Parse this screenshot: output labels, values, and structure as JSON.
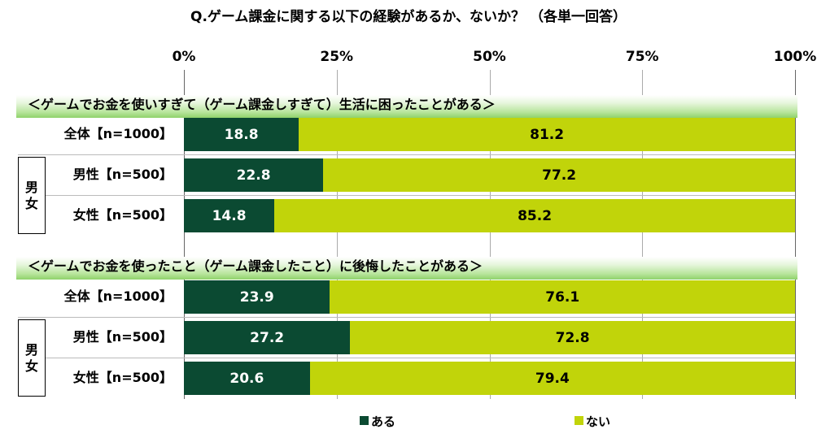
{
  "chart_data": {
    "type": "bar",
    "stacked": true,
    "orientation": "horizontal",
    "title": "Q.ゲーム課金に関する以下の経験があるか、ないか？ （各単一回答）",
    "x_ticks": [
      "0%",
      "25%",
      "50%",
      "75%",
      "100%"
    ],
    "xlim": [
      0,
      100
    ],
    "grid": true,
    "legend_position": "bottom",
    "legend": [
      {
        "label": "ある",
        "color": "#0b4a32"
      },
      {
        "label": "ない",
        "color": "#c1d40a"
      }
    ],
    "group_label": "男女",
    "sections": [
      {
        "title": "＜ゲームでお金を使いすぎて（ゲーム課金しすぎて）生活に困ったことがある＞",
        "rows": [
          {
            "label": "全体【n=1000】",
            "values": [
              "18.8",
              "81.2"
            ]
          },
          {
            "label": "男性【n=500】",
            "values": [
              "22.8",
              "77.2"
            ]
          },
          {
            "label": "女性【n=500】",
            "values": [
              "14.8",
              "85.2"
            ]
          }
        ]
      },
      {
        "title": "＜ゲームでお金を使ったこと（ゲーム課金したこと）に後悔したことがある＞",
        "rows": [
          {
            "label": "全体【n=1000】",
            "values": [
              "23.9",
              "76.1"
            ]
          },
          {
            "label": "男性【n=500】",
            "values": [
              "27.2",
              "72.8"
            ]
          },
          {
            "label": "女性【n=500】",
            "values": [
              "20.6",
              "79.4"
            ]
          }
        ]
      }
    ]
  }
}
